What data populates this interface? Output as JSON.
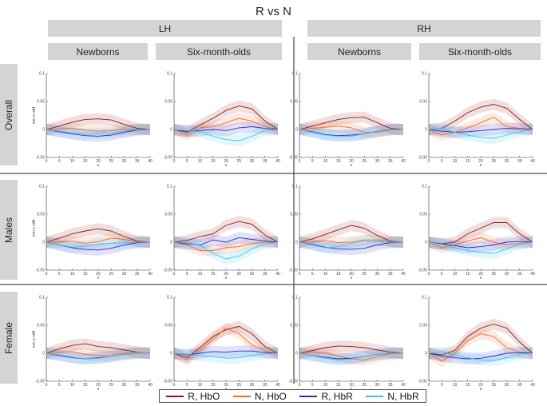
{
  "title": "R vs N",
  "hemispheres": [
    "LH",
    "RH"
  ],
  "groups": [
    "Newborns",
    "Six-month-olds",
    "Newborns",
    "Six-month-olds"
  ],
  "rows": [
    "Overall",
    "Males",
    "Female"
  ],
  "legend": [
    {
      "label": "R, HbO",
      "color": "#8b1a1a"
    },
    {
      "label": "N, HbO",
      "color": "#f26a2e"
    },
    {
      "label": "R, HbR",
      "color": "#2b2bcc"
    },
    {
      "label": "N, HbR",
      "color": "#35c4ee"
    }
  ],
  "chart_data": {
    "type": "line",
    "layout": "3 rows x 4 columns of small-multiple line panels with shaded error bands",
    "x": [
      0,
      5,
      10,
      15,
      20,
      25,
      30,
      35,
      40
    ],
    "xlabel": "s",
    "ylabel": "mm x mM",
    "xlim": [
      0,
      40
    ],
    "ylim": [
      -0.05,
      0.1
    ],
    "xticks": [
      "0",
      "5",
      "10",
      "15",
      "20",
      "25",
      "30",
      "35",
      "40"
    ],
    "yticks": [
      "-0.05",
      "0",
      "0.05",
      "0.1"
    ],
    "band_width": 0.01,
    "panels": [
      {
        "row": "Overall",
        "hemisphere": "LH",
        "group": "Newborns",
        "series": [
          {
            "name": "R, HbO",
            "values": [
              0,
              0.006,
              0.013,
              0.018,
              0.019,
              0.017,
              0.009,
              0.002,
              0
            ]
          },
          {
            "name": "N, HbO",
            "values": [
              0,
              0.001,
              0.002,
              -0.001,
              -0.003,
              -0.002,
              0,
              0,
              0
            ]
          },
          {
            "name": "R, HbR",
            "values": [
              0,
              -0.004,
              -0.008,
              -0.011,
              -0.012,
              -0.01,
              -0.005,
              -0.001,
              0
            ]
          },
          {
            "name": "N, HbR",
            "values": [
              0,
              -0.003,
              -0.006,
              -0.008,
              -0.007,
              -0.006,
              -0.003,
              0,
              0
            ]
          }
        ]
      },
      {
        "row": "Overall",
        "hemisphere": "LH",
        "group": "Six-month-olds",
        "series": [
          {
            "name": "R, HbO",
            "values": [
              0,
              -0.005,
              0.008,
              0.02,
              0.034,
              0.042,
              0.037,
              0.015,
              0
            ]
          },
          {
            "name": "N, HbO",
            "values": [
              0,
              -0.01,
              0.003,
              0.005,
              0.012,
              0.02,
              0.015,
              0.005,
              0
            ]
          },
          {
            "name": "R, HbR",
            "values": [
              0,
              -0.003,
              -0.002,
              0,
              -0.002,
              0.003,
              0.005,
              0.002,
              0
            ]
          },
          {
            "name": "N, HbR",
            "values": [
              0,
              -0.002,
              -0.004,
              -0.012,
              -0.018,
              -0.02,
              -0.012,
              -0.002,
              0
            ]
          }
        ]
      },
      {
        "row": "Overall",
        "hemisphere": "RH",
        "group": "Newborns",
        "series": [
          {
            "name": "R, HbO",
            "values": [
              0,
              0.006,
              0.012,
              0.018,
              0.021,
              0.022,
              0.012,
              0.002,
              0
            ]
          },
          {
            "name": "N, HbO",
            "values": [
              0,
              0.002,
              0.004,
              0.006,
              0.003,
              -0.005,
              -0.005,
              -0.001,
              0
            ]
          },
          {
            "name": "R, HbR",
            "values": [
              0,
              -0.004,
              -0.009,
              -0.011,
              -0.01,
              -0.008,
              -0.003,
              0,
              0
            ]
          },
          {
            "name": "N, HbR",
            "values": [
              0,
              -0.005,
              -0.01,
              -0.012,
              -0.012,
              -0.008,
              -0.003,
              0,
              0
            ]
          }
        ]
      },
      {
        "row": "Overall",
        "hemisphere": "RH",
        "group": "Six-month-olds",
        "series": [
          {
            "name": "R, HbO",
            "values": [
              0,
              0.002,
              0.015,
              0.03,
              0.04,
              0.045,
              0.038,
              0.018,
              0
            ]
          },
          {
            "name": "N, HbO",
            "values": [
              0,
              -0.01,
              -0.005,
              0.003,
              0.012,
              0.022,
              0.005,
              0.002,
              0
            ]
          },
          {
            "name": "R, HbR",
            "values": [
              0,
              -0.003,
              -0.005,
              -0.004,
              -0.002,
              0,
              0.002,
              0.001,
              0
            ]
          },
          {
            "name": "N, HbR",
            "values": [
              0,
              0.002,
              -0.005,
              -0.01,
              -0.014,
              -0.016,
              -0.01,
              -0.004,
              0
            ]
          }
        ]
      },
      {
        "row": "Males",
        "hemisphere": "LH",
        "group": "Newborns",
        "series": [
          {
            "name": "R, HbO",
            "values": [
              0,
              0.007,
              0.015,
              0.02,
              0.024,
              0.02,
              0.01,
              0.002,
              0
            ]
          },
          {
            "name": "N, HbO",
            "values": [
              0,
              0,
              0.002,
              -0.002,
              0.001,
              0.007,
              0.005,
              0.001,
              0
            ]
          },
          {
            "name": "R, HbR",
            "values": [
              0,
              -0.005,
              -0.01,
              -0.013,
              -0.014,
              -0.011,
              -0.005,
              -0.001,
              0
            ]
          },
          {
            "name": "N, HbR",
            "values": [
              0,
              -0.005,
              -0.009,
              -0.007,
              -0.003,
              -0.002,
              -0.001,
              0,
              0
            ]
          }
        ]
      },
      {
        "row": "Males",
        "hemisphere": "LH",
        "group": "Six-month-olds",
        "series": [
          {
            "name": "R, HbO",
            "values": [
              0,
              0.003,
              0.01,
              0.015,
              0.03,
              0.037,
              0.032,
              0.013,
              0
            ]
          },
          {
            "name": "N, HbO",
            "values": [
              0,
              -0.005,
              -0.015,
              -0.015,
              -0.01,
              -0.008,
              -0.002,
              0,
              0
            ]
          },
          {
            "name": "R, HbR",
            "values": [
              0,
              -0.003,
              -0.005,
              0.004,
              0,
              0.008,
              0.005,
              0.002,
              0
            ]
          },
          {
            "name": "N, HbR",
            "values": [
              0,
              -0.001,
              -0.006,
              -0.02,
              -0.03,
              -0.025,
              -0.012,
              -0.003,
              0
            ]
          }
        ]
      },
      {
        "row": "Males",
        "hemisphere": "RH",
        "group": "Newborns",
        "series": [
          {
            "name": "R, HbO",
            "values": [
              0,
              0.006,
              0.014,
              0.022,
              0.03,
              0.025,
              0.012,
              0.002,
              0
            ]
          },
          {
            "name": "N, HbO",
            "values": [
              0,
              0,
              0.003,
              -0.001,
              0,
              0.004,
              0.004,
              0.001,
              0
            ]
          },
          {
            "name": "R, HbR",
            "values": [
              0,
              -0.004,
              -0.009,
              -0.012,
              -0.013,
              -0.011,
              -0.005,
              -0.001,
              0
            ]
          },
          {
            "name": "N, HbR",
            "values": [
              0,
              -0.005,
              -0.01,
              -0.008,
              -0.002,
              0.002,
              0.001,
              0,
              0
            ]
          }
        ]
      },
      {
        "row": "Males",
        "hemisphere": "RH",
        "group": "Six-month-olds",
        "series": [
          {
            "name": "R, HbO",
            "values": [
              0,
              -0.003,
              0,
              0.015,
              0.025,
              0.035,
              0.035,
              0.015,
              0
            ]
          },
          {
            "name": "N, HbO",
            "values": [
              0,
              -0.01,
              -0.005,
              0.002,
              0.008,
              0,
              -0.005,
              -0.002,
              0
            ]
          },
          {
            "name": "R, HbR",
            "values": [
              0,
              -0.003,
              -0.006,
              -0.01,
              -0.008,
              -0.005,
              0,
              0.001,
              0
            ]
          },
          {
            "name": "N, HbR",
            "values": [
              0,
              -0.004,
              -0.01,
              -0.015,
              -0.018,
              -0.02,
              -0.012,
              -0.004,
              0
            ]
          }
        ]
      },
      {
        "row": "Female",
        "hemisphere": "LH",
        "group": "Newborns",
        "series": [
          {
            "name": "R, HbO",
            "values": [
              0,
              0.008,
              0.014,
              0.017,
              0.012,
              0.01,
              0.006,
              0.002,
              0
            ]
          },
          {
            "name": "N, HbO",
            "values": [
              0,
              0.002,
              0.003,
              -0.002,
              -0.004,
              -0.003,
              0,
              0.002,
              0
            ]
          },
          {
            "name": "R, HbR",
            "values": [
              0,
              -0.004,
              -0.008,
              -0.01,
              -0.008,
              -0.006,
              -0.002,
              0,
              0
            ]
          },
          {
            "name": "N, HbR",
            "values": [
              0,
              -0.003,
              -0.007,
              -0.01,
              -0.009,
              -0.006,
              -0.002,
              0,
              0
            ]
          }
        ]
      },
      {
        "row": "Female",
        "hemisphere": "LH",
        "group": "Six-month-olds",
        "series": [
          {
            "name": "R, HbO",
            "values": [
              0,
              -0.008,
              0.01,
              0.03,
              0.042,
              0.048,
              0.035,
              0.012,
              0
            ]
          },
          {
            "name": "N, HbO",
            "values": [
              0,
              -0.012,
              0.005,
              0.025,
              0.045,
              0.035,
              0.015,
              0.004,
              0
            ]
          },
          {
            "name": "R, HbR",
            "values": [
              0,
              -0.003,
              0,
              0.003,
              0.002,
              0.004,
              0.004,
              0.001,
              0
            ]
          },
          {
            "name": "N, HbR",
            "values": [
              0,
              -0.002,
              -0.004,
              -0.006,
              -0.009,
              -0.008,
              -0.004,
              -0.001,
              0
            ]
          }
        ]
      },
      {
        "row": "Female",
        "hemisphere": "RH",
        "group": "Newborns",
        "series": [
          {
            "name": "R, HbO",
            "values": [
              0,
              0.005,
              0.01,
              0.013,
              0.012,
              0.01,
              0.006,
              0.002,
              0
            ]
          },
          {
            "name": "N, HbO",
            "values": [
              0,
              0.002,
              0,
              -0.005,
              -0.01,
              -0.012,
              -0.006,
              -0.001,
              0
            ]
          },
          {
            "name": "R, HbR",
            "values": [
              0,
              -0.004,
              -0.007,
              -0.01,
              -0.009,
              -0.006,
              -0.002,
              0,
              0
            ]
          },
          {
            "name": "N, HbR",
            "values": [
              0,
              -0.004,
              -0.009,
              -0.012,
              -0.01,
              -0.006,
              -0.002,
              0,
              0
            ]
          }
        ]
      },
      {
        "row": "Female",
        "hemisphere": "RH",
        "group": "Six-month-olds",
        "series": [
          {
            "name": "R, HbO",
            "values": [
              0,
              -0.003,
              0.005,
              0.03,
              0.045,
              0.052,
              0.045,
              0.02,
              0
            ]
          },
          {
            "name": "N, HbO",
            "values": [
              0,
              -0.015,
              0,
              0.022,
              0.035,
              0.03,
              0.01,
              0.002,
              0
            ]
          },
          {
            "name": "R, HbR",
            "values": [
              0,
              -0.005,
              -0.008,
              -0.01,
              -0.009,
              -0.005,
              0,
              0.001,
              0
            ]
          },
          {
            "name": "N, HbR",
            "values": [
              0,
              0.002,
              -0.003,
              -0.008,
              -0.012,
              -0.013,
              -0.008,
              -0.002,
              0
            ]
          }
        ]
      }
    ]
  }
}
